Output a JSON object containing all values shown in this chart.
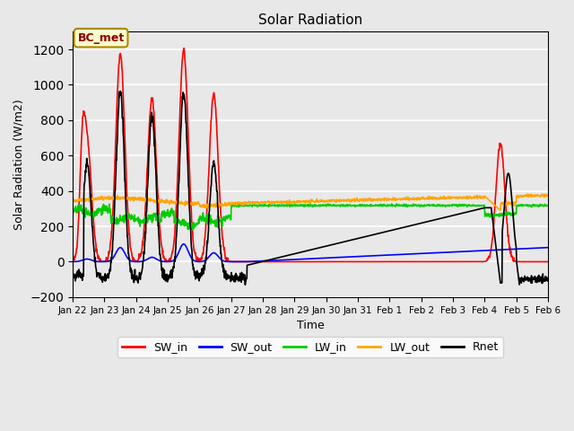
{
  "title": "Solar Radiation",
  "xlabel": "Time",
  "ylabel": "Solar Radiation (W/m2)",
  "ylim": [
    -200,
    1300
  ],
  "yticks": [
    -200,
    0,
    200,
    400,
    600,
    800,
    1000,
    1200
  ],
  "annotation_text": "BC_met",
  "annotation_color": "#8B0000",
  "annotation_bg": "#FFFFCC",
  "bg_color": "#E8E8E8",
  "plot_bg": "#E8E8E8",
  "series": {
    "SW_in": {
      "color": "#FF0000",
      "lw": 1.2
    },
    "SW_out": {
      "color": "#0000FF",
      "lw": 1.2
    },
    "LW_in": {
      "color": "#00CC00",
      "lw": 1.2
    },
    "LW_out": {
      "color": "#FFA500",
      "lw": 1.2
    },
    "Rnet": {
      "color": "#000000",
      "lw": 1.2
    }
  },
  "xtick_labels": [
    "Jan 22",
    "Jan 23",
    "Jan 24",
    "Jan 25",
    "Jan 26",
    "Jan 27",
    "Jan 28",
    "Jan 29",
    "Jan 30",
    "Jan 31",
    "Feb 1",
    "Feb 2",
    "Feb 3",
    "Feb 4",
    "Feb 5",
    "Feb 6"
  ],
  "num_points": 1500
}
